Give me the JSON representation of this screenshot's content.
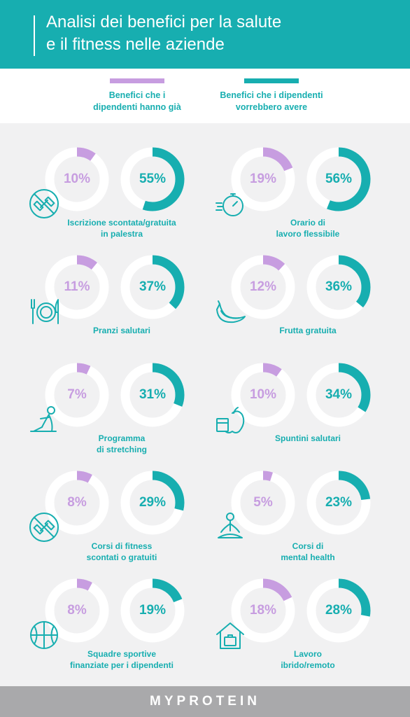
{
  "header": {
    "title_line1": "Analisi dei benefici per la salute",
    "title_line2": "e il fitness nelle aziende"
  },
  "colors": {
    "have": "#c79de0",
    "want": "#17aeb0",
    "track": "#ffffff",
    "label": "#17aeb0"
  },
  "legend": {
    "have": {
      "line1": "Benefici che i",
      "line2": "dipendenti hanno già"
    },
    "want": {
      "line1": "Benefici che i dipendenti",
      "line2": "vorrebbero avere"
    }
  },
  "chart_data": {
    "type": "donut",
    "series": [
      {
        "name": "Benefici che i dipendenti hanno già"
      },
      {
        "name": "Benefici che i dipendenti vorrebbero avere"
      }
    ],
    "items": [
      {
        "label_line1": "Iscrizione scontata/gratuita",
        "label_line2": "in palestra",
        "have": 10,
        "want": 55,
        "have_text": "10%",
        "want_text": "55%",
        "icon": "gym-dumbbell-icon"
      },
      {
        "label_line1": "Orario di",
        "label_line2": "lavoro flessibile",
        "have": 19,
        "want": 56,
        "have_text": "19%",
        "want_text": "56%",
        "icon": "stopwatch-icon"
      },
      {
        "label_line1": "Pranzi salutari",
        "label_line2": "",
        "have": 11,
        "want": 37,
        "have_text": "11%",
        "want_text": "37%",
        "icon": "plate-fork-knife-icon"
      },
      {
        "label_line1": "Frutta gratuita",
        "label_line2": "",
        "have": 12,
        "want": 36,
        "have_text": "12%",
        "want_text": "36%",
        "icon": "bananas-icon"
      },
      {
        "label_line1": "Programma",
        "label_line2": "di stretching",
        "have": 7,
        "want": 31,
        "have_text": "7%",
        "want_text": "31%",
        "icon": "stretching-person-icon"
      },
      {
        "label_line1": "Spuntini salutari",
        "label_line2": "",
        "have": 10,
        "want": 34,
        "have_text": "10%",
        "want_text": "34%",
        "icon": "apple-yogurt-icon"
      },
      {
        "label_line1": "Corsi di fitness",
        "label_line2": "scontati o gratuiti",
        "have": 8,
        "want": 29,
        "have_text": "8%",
        "want_text": "29%",
        "icon": "gym-dumbbell-icon"
      },
      {
        "label_line1": "Corsi di",
        "label_line2": "mental health",
        "have": 5,
        "want": 23,
        "have_text": "5%",
        "want_text": "23%",
        "icon": "meditation-icon"
      },
      {
        "label_line1": "Squadre sportive",
        "label_line2": "finanziate per i dipendenti",
        "have": 8,
        "want": 19,
        "have_text": "8%",
        "want_text": "19%",
        "icon": "basketball-icon"
      },
      {
        "label_line1": "Lavoro",
        "label_line2": "ibrido/remoto",
        "have": 18,
        "want": 28,
        "have_text": "18%",
        "want_text": "28%",
        "icon": "house-briefcase-icon"
      }
    ]
  },
  "footer": {
    "brand": "MYPROTEIN"
  }
}
